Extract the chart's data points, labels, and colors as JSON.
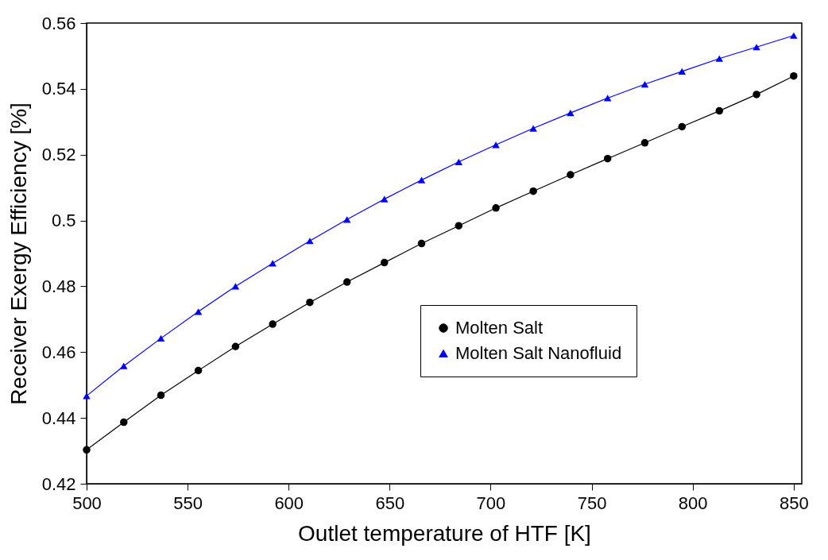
{
  "chart_data": {
    "type": "line",
    "xlabel": "Outlet temperature of HTF [K]",
    "ylabel": "Receiver Exergy Efficiency [%]",
    "x": [
      500,
      518.4,
      536.8,
      555.3,
      573.7,
      592.1,
      610.5,
      628.9,
      647.4,
      665.8,
      684.2,
      702.6,
      721.1,
      739.5,
      757.9,
      776.3,
      794.7,
      813.2,
      831.6,
      850
    ],
    "series": [
      {
        "name": "Molten Salt",
        "color": "#000000",
        "marker": "circle",
        "values": [
          0.4303,
          0.4387,
          0.4469,
          0.4544,
          0.4617,
          0.4685,
          0.4751,
          0.4813,
          0.4872,
          0.493,
          0.4984,
          0.5038,
          0.5089,
          0.5139,
          0.5188,
          0.5236,
          0.5285,
          0.5333,
          0.5383,
          0.5439
        ]
      },
      {
        "name": "Molten Salt Nanofluid",
        "color": "#0000ff",
        "marker": "triangle",
        "values": [
          0.4467,
          0.4558,
          0.4642,
          0.4723,
          0.48,
          0.487,
          0.4938,
          0.5003,
          0.5065,
          0.5123,
          0.5178,
          0.523,
          0.528,
          0.5327,
          0.5372,
          0.5414,
          0.5453,
          0.5492,
          0.5527,
          0.5562
        ]
      }
    ],
    "xlim": [
      500,
      854
    ],
    "xticks": [
      500,
      550,
      600,
      650,
      700,
      750,
      800,
      850
    ],
    "ylim": [
      0.42,
      0.56
    ],
    "yticks": [
      0.42,
      0.44,
      0.46,
      0.48,
      0.5,
      0.52,
      0.54,
      0.56
    ],
    "grid": false,
    "legend": "right",
    "line_style": "solid"
  }
}
